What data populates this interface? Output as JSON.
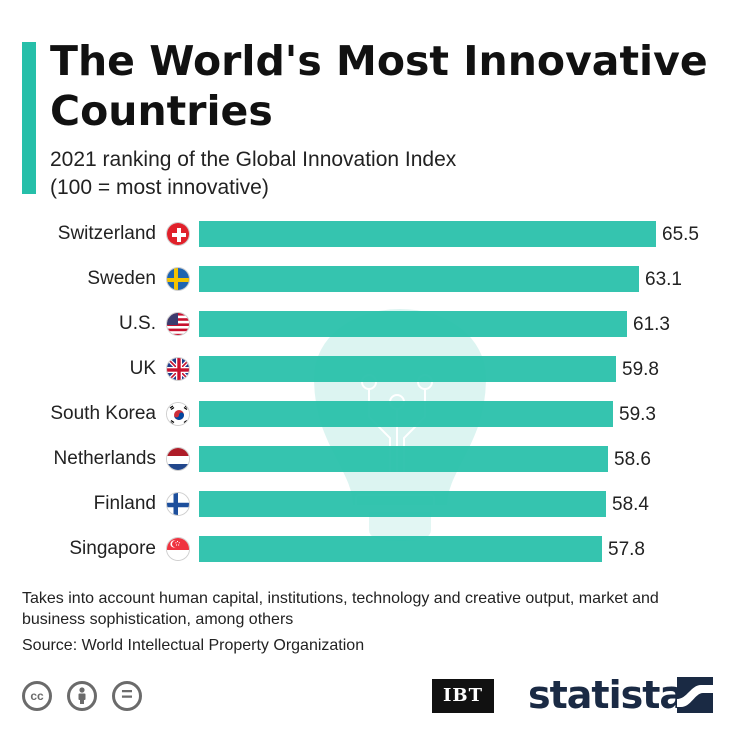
{
  "header": {
    "title": "The World's Most Innovative Countries",
    "subtitle_line1": "2021 ranking of the Global Innovation Index",
    "subtitle_line2": "(100 = most innovative)"
  },
  "colors": {
    "accent": "#26bfa9",
    "bar": "#26bfa9",
    "text": "#222222",
    "brand": "#1a2a44"
  },
  "chart_data": {
    "type": "bar",
    "orientation": "horizontal",
    "title": "The World's Most Innovative Countries",
    "subtitle": "2021 ranking of the Global Innovation Index (100 = most innovative)",
    "categories": [
      "Switzerland",
      "Sweden",
      "U.S.",
      "UK",
      "South Korea",
      "Netherlands",
      "Finland",
      "Singapore"
    ],
    "values": [
      65.5,
      63.1,
      61.3,
      59.8,
      59.3,
      58.6,
      58.4,
      57.8
    ],
    "value_labels": [
      "65.5",
      "63.1",
      "61.3",
      "59.8",
      "59.3",
      "58.6",
      "58.4",
      "57.8"
    ],
    "flag_icons": [
      "switzerland-flag-icon",
      "sweden-flag-icon",
      "us-flag-icon",
      "uk-flag-icon",
      "south-korea-flag-icon",
      "netherlands-flag-icon",
      "finland-flag-icon",
      "singapore-flag-icon"
    ],
    "xlim": [
      0,
      65.5
    ],
    "grid": false,
    "legend": "none"
  },
  "footer": {
    "note": "Takes into account human capital, institutions, technology and creative output, market and business sophistication, among others",
    "source": "Source: World Intellectual Property Organization",
    "license_icons": [
      "creative-commons-icon",
      "attribution-icon",
      "no-derivatives-icon"
    ],
    "cc_glyph": "cc",
    "nd_glyph": "=",
    "ibt_logo": "IBT",
    "brand_logo": "statista"
  }
}
